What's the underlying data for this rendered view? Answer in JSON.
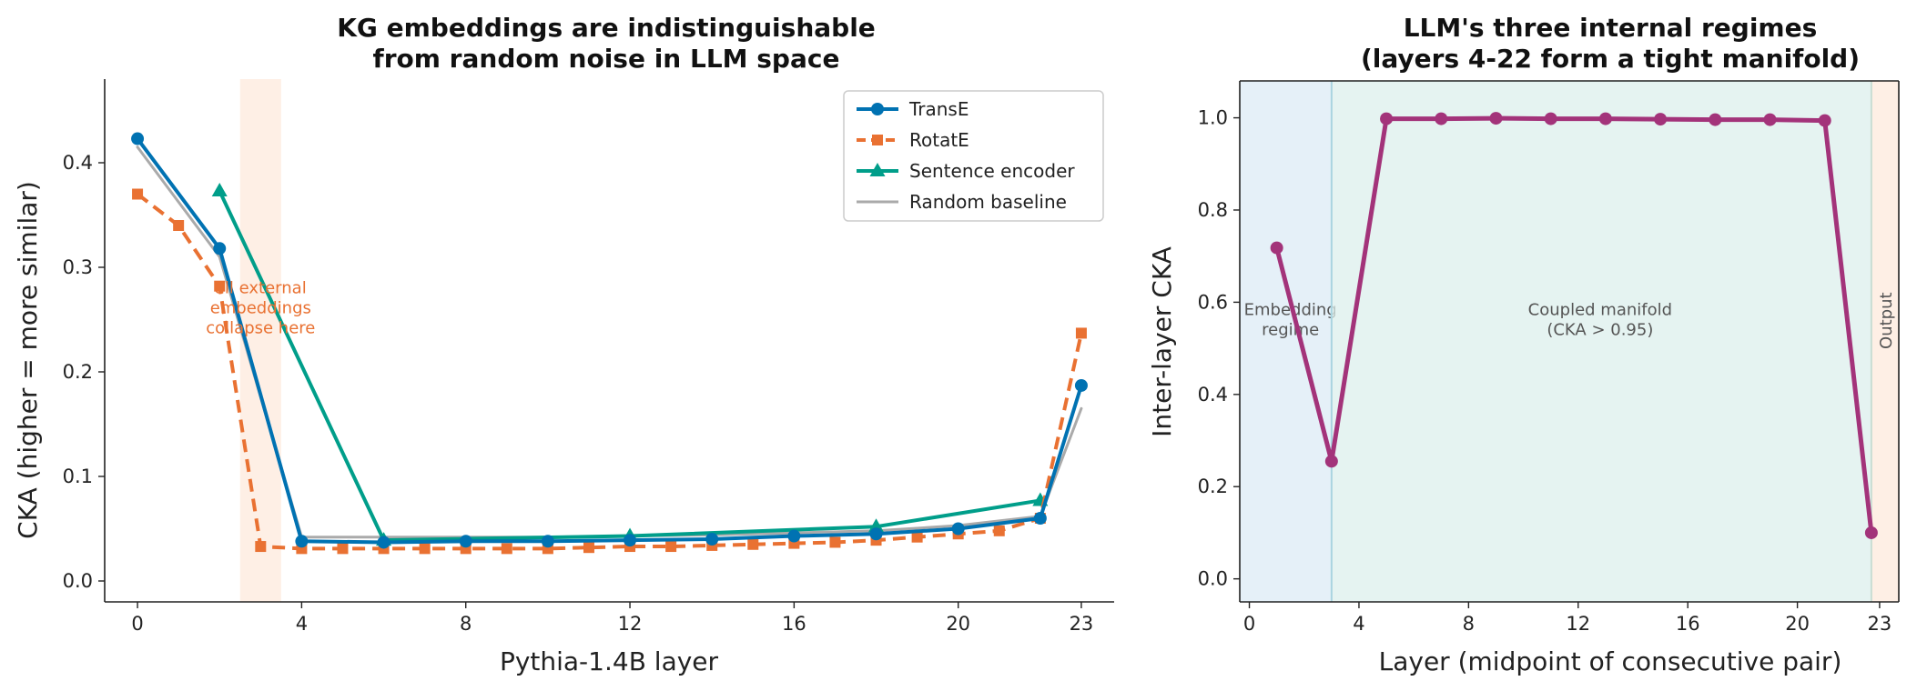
{
  "chart_data": [
    {
      "type": "line",
      "title": [
        "KG embeddings are indistinguishable",
        "from random noise in LLM space"
      ],
      "xlabel": "Pythia-1.4B layer",
      "ylabel": "CKA (higher = more similar)",
      "xlim": [
        -0.8,
        23.8
      ],
      "ylim": [
        -0.02,
        0.48
      ],
      "xticks": [
        0,
        4,
        8,
        12,
        16,
        20,
        23
      ],
      "yticks": [
        0.0,
        0.1,
        0.2,
        0.3,
        0.4
      ],
      "ytick_labels": [
        "0.0",
        "0.1",
        "0.2",
        "0.3",
        "0.4"
      ],
      "grid": false,
      "legend": "top-right",
      "series": [
        {
          "name": "TransE",
          "color": "#0072B2",
          "marker": "circle",
          "dash": "solid",
          "x": [
            0,
            2,
            4,
            6,
            8,
            10,
            12,
            14,
            16,
            18,
            20,
            22,
            23
          ],
          "y": [
            0.423,
            0.318,
            0.038,
            0.037,
            0.038,
            0.038,
            0.039,
            0.04,
            0.043,
            0.045,
            0.05,
            0.06,
            0.187
          ]
        },
        {
          "name": "RotatE",
          "color": "#E97132",
          "marker": "square",
          "dash": "dashed",
          "x": [
            0,
            1,
            2,
            3,
            4,
            5,
            6,
            7,
            8,
            9,
            10,
            11,
            12,
            13,
            14,
            15,
            16,
            17,
            18,
            19,
            20,
            21,
            22,
            23
          ],
          "y": [
            0.37,
            0.34,
            0.282,
            0.033,
            0.031,
            0.031,
            0.031,
            0.031,
            0.031,
            0.031,
            0.031,
            0.032,
            0.033,
            0.033,
            0.034,
            0.035,
            0.036,
            0.037,
            0.039,
            0.042,
            0.045,
            0.048,
            0.06,
            0.237
          ]
        },
        {
          "name": "Sentence encoder",
          "color": "#009E8A",
          "marker": "triangle",
          "dash": "solid",
          "x": [
            2,
            6,
            12,
            18,
            22
          ],
          "y": [
            0.373,
            0.039,
            0.043,
            0.052,
            0.077
          ]
        },
        {
          "name": "Random baseline",
          "color": "#AAAAAA",
          "marker": "none",
          "dash": "solid",
          "x": [
            0,
            2,
            4,
            6,
            8,
            10,
            12,
            14,
            16,
            18,
            20,
            22,
            23
          ],
          "y": [
            0.415,
            0.31,
            0.042,
            0.042,
            0.042,
            0.042,
            0.043,
            0.044,
            0.046,
            0.048,
            0.053,
            0.062,
            0.165
          ]
        }
      ],
      "shaded_band": {
        "x": [
          2.5,
          3.5
        ],
        "color": "#FDE9DC"
      },
      "annotation": {
        "text": [
          "all external",
          "embeddings",
          "collapse here"
        ],
        "x": 3.0,
        "y": 0.27,
        "color": "#E97132"
      }
    },
    {
      "type": "line",
      "title": [
        "LLM's three internal regimes",
        "(layers 4-22 form a tight manifold)"
      ],
      "xlabel": "Layer (midpoint of consecutive pair)",
      "ylabel": "Inter-layer CKA",
      "xlim": [
        -0.35,
        23.7
      ],
      "ylim": [
        -0.05,
        1.08
      ],
      "xticks": [
        0,
        4,
        8,
        12,
        16,
        20,
        23
      ],
      "yticks": [
        0.0,
        0.2,
        0.4,
        0.6,
        0.8,
        1.0
      ],
      "ytick_labels": [
        "0.0",
        "0.2",
        "0.4",
        "0.6",
        "0.8",
        "1.0"
      ],
      "grid": false,
      "series": [
        {
          "name": "",
          "color": "#A3337A",
          "marker": "circle",
          "dash": "solid",
          "x": [
            1,
            3,
            5,
            7,
            9,
            11,
            13,
            15,
            17,
            19,
            21,
            22.7
          ],
          "y": [
            0.718,
            0.255,
            0.998,
            0.998,
            0.999,
            0.998,
            0.998,
            0.997,
            0.996,
            0.996,
            0.994,
            0.1
          ]
        }
      ],
      "regions": [
        {
          "x": [
            -0.35,
            3
          ],
          "color": "#DCEBF6",
          "label": [
            "Embedding",
            "regime"
          ],
          "label_x": 1.5,
          "label_y": 0.56,
          "rotate": false
        },
        {
          "x": [
            3,
            22.7
          ],
          "color": "#DCEFEC",
          "label": [
            "Coupled manifold",
            "(CKA > 0.95)"
          ],
          "label_x": 12.8,
          "label_y": 0.56,
          "rotate": false
        },
        {
          "x": [
            22.7,
            23.7
          ],
          "color": "#FDE9DC",
          "label": [
            "Output"
          ],
          "label_x": 23.2,
          "label_y": 0.56,
          "rotate": true
        }
      ]
    }
  ]
}
